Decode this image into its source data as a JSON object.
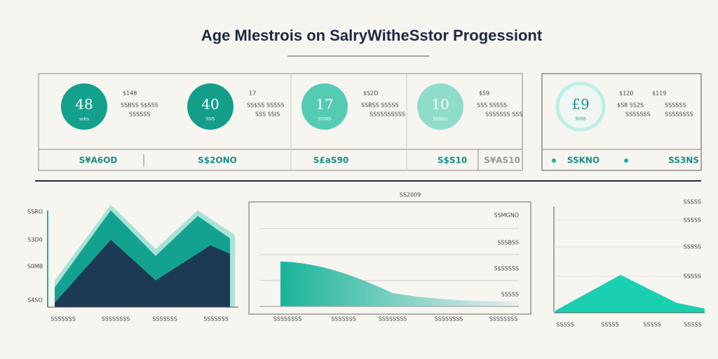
{
  "header": {
    "title": "Age Mlestrois on SalryWitheSstor Progessiont"
  },
  "cards": [
    {
      "value": "48",
      "sub": "sotis",
      "label1": "$148",
      "label2": "SSBSS S$SSS",
      "label3": "SSSSSS"
    },
    {
      "value": "40",
      "sub": "SSIS",
      "label1": "17",
      "label2": "SS$SS SSSSS",
      "label3": "SSS SSIS"
    },
    {
      "value": "17",
      "sub": "SSSBS",
      "label1": "$S2D",
      "label2": "SSBSS SSSSS",
      "label3": "SSSSSSSSSS"
    },
    {
      "value": "10",
      "sub": "SSSSIS",
      "label1": "$S9",
      "label2": "SSS SSSSS",
      "label3": "SSSSSSS SSS"
    },
    {
      "value": "£9",
      "sub": "S0SS",
      "label1": "$120",
      "label2": "$S8 SS2S",
      "label3": "SSSSSSS"
    }
  ],
  "extra": {
    "label1": "$119",
    "label2": "SSSSSS",
    "label3": "SSSSSSSS"
  },
  "footer_row": [
    "S¥A6OD",
    "S$2ONO",
    "S£aS90",
    "S$S10",
    "S¥AS10",
    "SSKNO",
    "SS3NS"
  ],
  "left_chart": {
    "y_labels": [
      "SSRO",
      "S3D0",
      "S0MB",
      "S4SO"
    ],
    "x_labels": [
      "SSSSSSS",
      "SSSSSSSS",
      "SSSSSSS",
      "SSSSSSS"
    ]
  },
  "middle_chart": {
    "title": "SS2009",
    "y_labels": [
      "SSMGNO",
      "SSSBSS",
      "S$SSSSS",
      "SSSSS"
    ],
    "x_labels": [
      "SSSSSSSS",
      "SSSSSSS",
      "SSSSSSSS",
      "SSSSSSSS",
      "SSSSSSSS"
    ]
  },
  "right_chart": {
    "y_labels": [
      "SSSSS",
      "SSSSS",
      "SSSSS",
      "SSSSS"
    ],
    "x_labels": [
      "SSSSS",
      "SSSSS",
      "SSSSS",
      "SSSSS"
    ]
  }
}
